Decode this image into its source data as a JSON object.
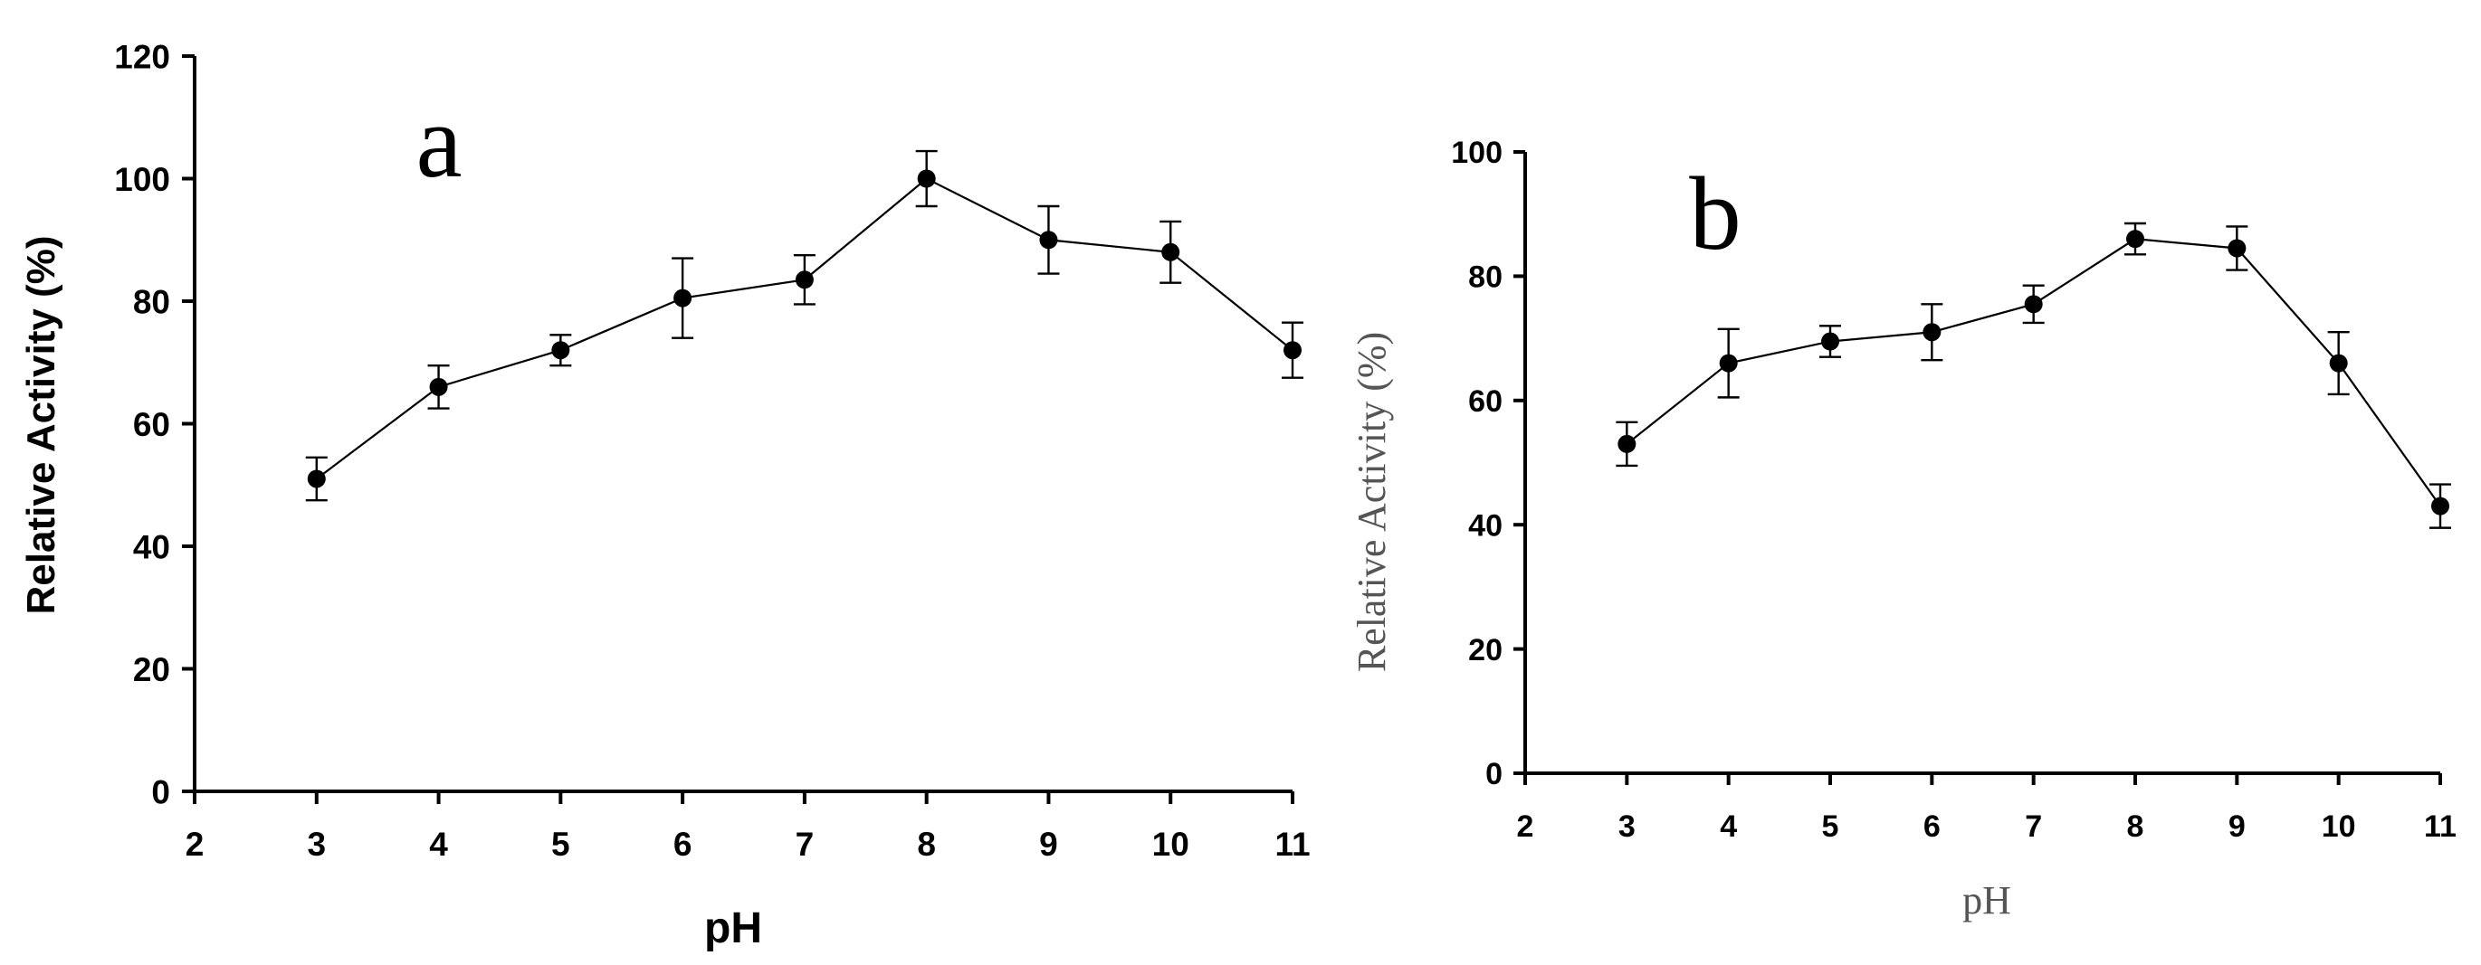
{
  "chart_data": [
    {
      "type": "line",
      "panel_label": "a",
      "xlabel": "pH",
      "ylabel": "Relative Activity (%)",
      "xlim": [
        2,
        11
      ],
      "ylim": [
        0,
        120
      ],
      "x_ticks": [
        2,
        3,
        4,
        5,
        6,
        7,
        8,
        9,
        10,
        11
      ],
      "y_ticks": [
        0,
        20,
        40,
        60,
        80,
        100,
        120
      ],
      "grid": false,
      "series": [
        {
          "x": [
            3,
            4,
            5,
            6,
            7,
            8,
            9,
            10,
            11
          ],
          "values": [
            51,
            66,
            72,
            80.5,
            83.5,
            100,
            90,
            88,
            72
          ],
          "errors": [
            3.5,
            3.5,
            2.5,
            6.5,
            4,
            4.5,
            5.5,
            5,
            4.5
          ]
        }
      ]
    },
    {
      "type": "line",
      "panel_label": "b",
      "xlabel": "pH",
      "ylabel": "Relative Activity (%)",
      "xlim": [
        2,
        11
      ],
      "ylim": [
        0,
        100
      ],
      "x_ticks": [
        2,
        3,
        4,
        5,
        6,
        7,
        8,
        9,
        10,
        11
      ],
      "y_ticks": [
        0,
        20,
        40,
        60,
        80,
        100
      ],
      "grid": false,
      "series": [
        {
          "x": [
            3,
            4,
            5,
            6,
            7,
            8,
            9,
            10,
            11
          ],
          "values": [
            53,
            66,
            69.5,
            71,
            75.5,
            86,
            84.5,
            66,
            43
          ],
          "errors": [
            3.5,
            5.5,
            2.5,
            4.5,
            3,
            2.5,
            3.5,
            5,
            3.5
          ]
        }
      ]
    }
  ]
}
